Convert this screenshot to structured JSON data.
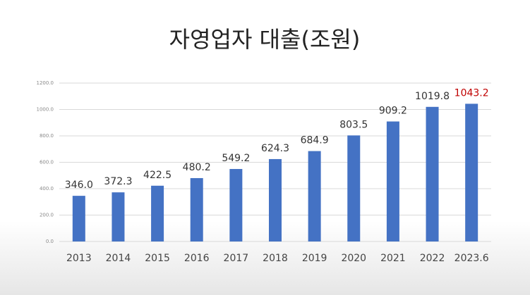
{
  "chart_data": {
    "type": "bar",
    "title": "자영업자 대출(조원)",
    "categories": [
      "2013",
      "2014",
      "2015",
      "2016",
      "2017",
      "2018",
      "2019",
      "2020",
      "2021",
      "2022",
      "2023.6"
    ],
    "values": [
      346.0,
      372.3,
      422.5,
      480.2,
      549.2,
      624.3,
      684.9,
      803.5,
      909.2,
      1019.8,
      1043.2
    ],
    "value_labels": [
      "346.0",
      "372.3",
      "422.5",
      "480.2",
      "549.2",
      "624.3",
      "684.9",
      "803.5",
      "909.2",
      "1019.8",
      "1043.2"
    ],
    "value_label_colors": [
      "#333333",
      "#333333",
      "#333333",
      "#333333",
      "#333333",
      "#333333",
      "#333333",
      "#333333",
      "#333333",
      "#333333",
      "#c00000"
    ],
    "color": "#4472c4",
    "ylim": [
      0,
      1200
    ],
    "yticks": [
      {
        "value": 0,
        "label": "0.0"
      },
      {
        "value": 200,
        "label": "200.0"
      },
      {
        "value": 400,
        "label": "400.0"
      },
      {
        "value": 600,
        "label": "600.0"
      },
      {
        "value": 800,
        "label": "800.0"
      },
      {
        "value": 1000,
        "label": "1000.0"
      },
      {
        "value": 1200,
        "label": "1200.0"
      }
    ],
    "grid": true
  }
}
